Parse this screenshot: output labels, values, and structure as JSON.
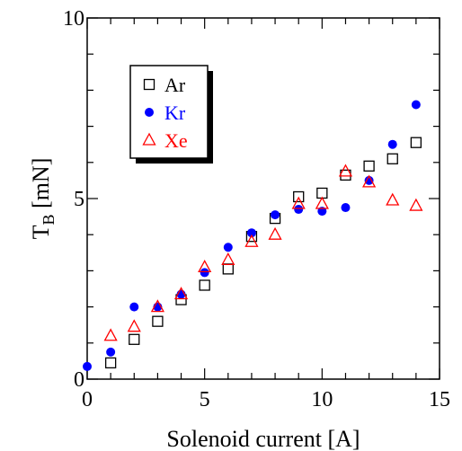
{
  "chart_data": {
    "type": "scatter",
    "xlabel": "Solenoid current [A]",
    "ylabel": "T",
    "ylabel_sub": "B",
    "ylabel_unit": " [mN]",
    "xlim": [
      0,
      15
    ],
    "ylim": [
      0,
      10
    ],
    "xticks": [
      0,
      5,
      10,
      15
    ],
    "yticks": [
      0,
      5,
      10
    ],
    "xtick_labels": [
      "0",
      "5",
      "10",
      "15"
    ],
    "ytick_labels": [
      "0",
      "5",
      "10"
    ],
    "grid": false,
    "legend_placement": "top-left",
    "series": [
      {
        "name": "Ar",
        "marker": "square-open",
        "color": "#000000",
        "x": [
          1,
          2,
          3,
          4,
          5,
          6,
          7,
          8,
          9,
          10,
          11,
          12,
          13,
          14
        ],
        "y": [
          0.45,
          1.1,
          1.6,
          2.2,
          2.6,
          3.05,
          3.95,
          4.45,
          5.05,
          5.15,
          5.65,
          5.9,
          6.1,
          6.55
        ]
      },
      {
        "name": "Kr",
        "marker": "circle-filled",
        "color": "#0000ff",
        "x": [
          0,
          1,
          2,
          3,
          4,
          5,
          6,
          7,
          8,
          9,
          10,
          11,
          12,
          13,
          14
        ],
        "y": [
          0.35,
          0.75,
          2.0,
          2.0,
          2.35,
          2.95,
          3.65,
          4.05,
          4.55,
          4.7,
          4.65,
          4.75,
          5.5,
          6.5,
          7.6
        ]
      },
      {
        "name": "Xe",
        "marker": "triangle-open",
        "color": "#ff0000",
        "x": [
          1,
          2,
          3,
          4,
          5,
          6,
          7,
          8,
          9,
          10,
          11,
          12,
          13,
          14
        ],
        "y": [
          1.2,
          1.45,
          2.0,
          2.35,
          3.1,
          3.3,
          3.8,
          4.0,
          4.85,
          4.85,
          5.75,
          5.45,
          4.95,
          4.8
        ]
      }
    ]
  }
}
